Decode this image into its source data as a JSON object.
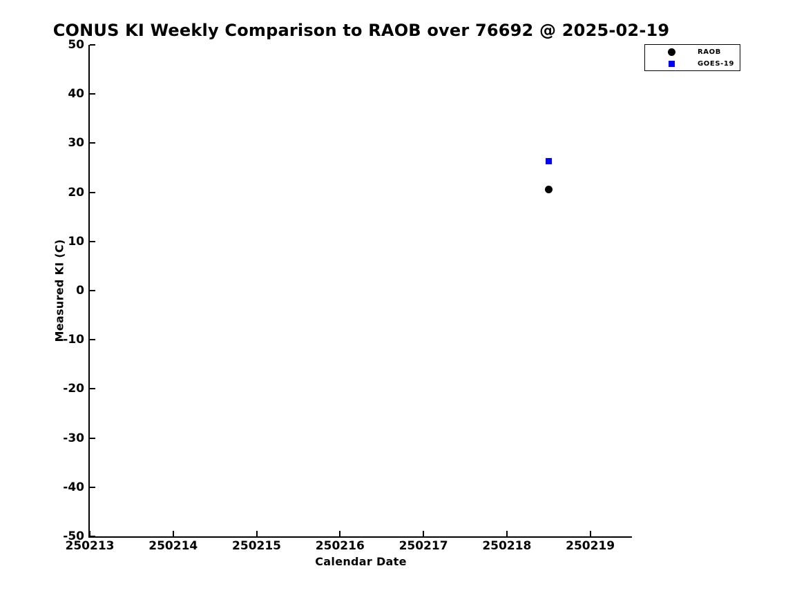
{
  "title": "CONUS KI Weekly Comparison to RAOB over 76692 @ 2025-02-19",
  "axes": {
    "xlabel": "Calendar Date",
    "ylabel": "Measured KI (C)"
  },
  "colors": {
    "raob": "#000000",
    "goes19": "#0000ff",
    "axis": "#000000",
    "background": "#ffffff"
  },
  "legend": {
    "position": "upper-right-outside-plot",
    "items": [
      {
        "label": "RAOB",
        "marker": "circle",
        "color": "#000000"
      },
      {
        "label": "GOES-19",
        "marker": "square",
        "color": "#0000ff"
      }
    ]
  },
  "chart_data": {
    "type": "scatter",
    "title": "CONUS KI Weekly Comparison to RAOB over 76692 @ 2025-02-19",
    "xlabel": "Calendar Date",
    "ylabel": "Measured KI (C)",
    "xlim": [
      250213,
      250219.5
    ],
    "ylim": [
      -50,
      50
    ],
    "xticks": [
      250213,
      250214,
      250215,
      250216,
      250217,
      250218,
      250219
    ],
    "yticks": [
      -50,
      -40,
      -30,
      -20,
      -10,
      0,
      10,
      20,
      30,
      40,
      50
    ],
    "grid": false,
    "series": [
      {
        "name": "RAOB",
        "marker": "circle",
        "color": "#000000",
        "marker_size": 11,
        "points": [
          {
            "x": 250218.5,
            "y": 20.6
          }
        ]
      },
      {
        "name": "GOES-19",
        "marker": "square",
        "color": "#0000ff",
        "marker_size": 9,
        "points": [
          {
            "x": 250218.5,
            "y": 26.4
          }
        ]
      }
    ]
  }
}
